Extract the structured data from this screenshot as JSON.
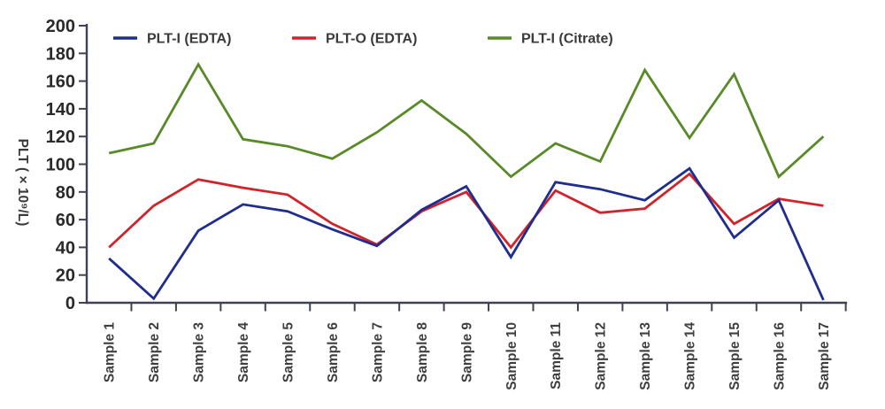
{
  "chart_data": {
    "type": "line",
    "title": "",
    "xlabel": "",
    "ylabel": "PLT ( × 10⁹/L)",
    "ylim": [
      0,
      200
    ],
    "ytick_step": 20,
    "yticks": [
      0,
      20,
      40,
      60,
      80,
      100,
      120,
      140,
      160,
      180,
      200
    ],
    "grid": false,
    "legend_position": "top-inside",
    "categories": [
      "Sample 1",
      "Sample 2",
      "Sample 3",
      "Sample 4",
      "Sample 5",
      "Sample 6",
      "Sample 7",
      "Sample 8",
      "Sample 9",
      "Sample 10",
      "Sample 11",
      "Sample 12",
      "Sample 13",
      "Sample 14",
      "Sample 15",
      "Sample 16",
      "Sample 17"
    ],
    "series": [
      {
        "name": "PLT-I (EDTA)",
        "color": "#1f2e8e",
        "values": [
          32,
          3,
          52,
          71,
          66,
          53,
          41,
          67,
          84,
          33,
          87,
          82,
          74,
          97,
          47,
          74,
          2
        ]
      },
      {
        "name": "PLT-O (EDTA)",
        "color": "#d2222a",
        "values": [
          40,
          70,
          89,
          83,
          78,
          57,
          42,
          66,
          80,
          40,
          81,
          65,
          68,
          93,
          57,
          75,
          70
        ]
      },
      {
        "name": "PLT-I (Citrate)",
        "color": "#588a28",
        "values": [
          108,
          115,
          172,
          118,
          113,
          104,
          123,
          146,
          122,
          91,
          115,
          102,
          168,
          119,
          165,
          91,
          120
        ]
      }
    ],
    "colors": {
      "axis": "#3e4252",
      "ytick_label": "#2a2a2a",
      "xtick_label": "#3f3f3f",
      "legend_text": "#3a3a3a",
      "background": "#ffffff"
    }
  }
}
